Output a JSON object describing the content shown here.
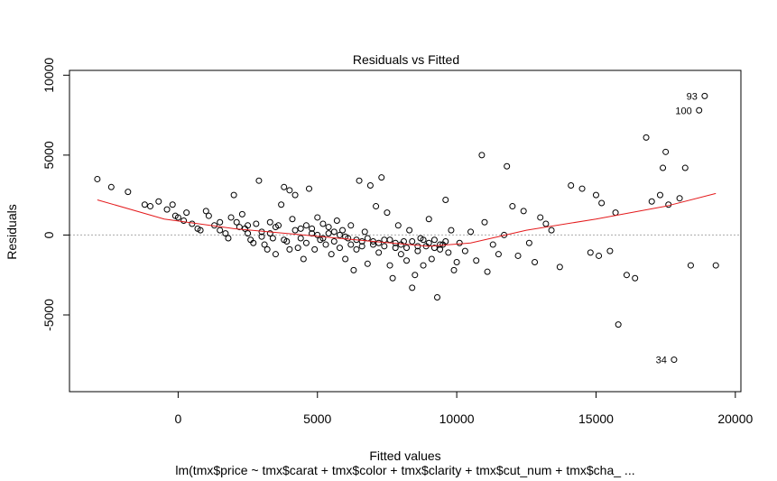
{
  "chart_data": {
    "type": "scatter",
    "title": "Residuals vs Fitted",
    "xlabel": "Fitted values",
    "ylabel": "Residuals",
    "subtitle": "lm(tmx$price ~ tmx$carat + tmx$color + tmx$clarity + tmx$cut_num + tmx$cha_ ...",
    "xlim": [
      -3900,
      20200
    ],
    "ylim": [
      -9800,
      10300
    ],
    "x_ticks": [
      0,
      5000,
      10000,
      15000,
      20000
    ],
    "y_ticks": [
      -5000,
      0,
      5000,
      10000
    ],
    "x_tick_labels": [
      "0",
      "5000",
      "10000",
      "15000",
      "20000"
    ],
    "y_tick_labels": [
      "-5000",
      "0",
      "5000",
      "10000"
    ],
    "zero_line": 0,
    "colors": {
      "points": "#000000",
      "smoother": "#e41a1c",
      "zero_line": "#aaaaaa"
    },
    "smoother": {
      "x": [
        -2900,
        -500,
        2000,
        4500,
        7000,
        9000,
        10500,
        12500,
        15000,
        17500,
        19300
      ],
      "y": [
        2200,
        1000,
        400,
        0,
        -400,
        -700,
        -500,
        300,
        1000,
        1800,
        2600
      ]
    },
    "labeled_points": [
      {
        "label": "93",
        "x": 18900,
        "y": 8700
      },
      {
        "label": "100",
        "x": 18700,
        "y": 7800
      },
      {
        "label": "34",
        "x": 17800,
        "y": -7800
      }
    ],
    "points": [
      [
        -2900,
        3500
      ],
      [
        -2400,
        3000
      ],
      [
        -1800,
        2700
      ],
      [
        -1200,
        1900
      ],
      [
        -1000,
        1800
      ],
      [
        -700,
        2100
      ],
      [
        -400,
        1600
      ],
      [
        -200,
        1900
      ],
      [
        -100,
        1200
      ],
      [
        0,
        1100
      ],
      [
        200,
        900
      ],
      [
        300,
        1400
      ],
      [
        500,
        700
      ],
      [
        700,
        400
      ],
      [
        800,
        300
      ],
      [
        1000,
        1500
      ],
      [
        1100,
        1200
      ],
      [
        1300,
        600
      ],
      [
        1500,
        300
      ],
      [
        1700,
        100
      ],
      [
        1800,
        -200
      ],
      [
        1900,
        1100
      ],
      [
        2000,
        2500
      ],
      [
        2100,
        800
      ],
      [
        2200,
        500
      ],
      [
        2300,
        1300
      ],
      [
        2400,
        400
      ],
      [
        2500,
        100
      ],
      [
        2600,
        -300
      ],
      [
        2700,
        -500
      ],
      [
        2800,
        700
      ],
      [
        2900,
        3400
      ],
      [
        3000,
        200
      ],
      [
        3100,
        -600
      ],
      [
        3200,
        -900
      ],
      [
        3300,
        800
      ],
      [
        3400,
        -200
      ],
      [
        3500,
        -1200
      ],
      [
        3600,
        600
      ],
      [
        3700,
        1900
      ],
      [
        3800,
        3000
      ],
      [
        3900,
        -400
      ],
      [
        4000,
        2800
      ],
      [
        4100,
        1000
      ],
      [
        4200,
        2500
      ],
      [
        4300,
        -800
      ],
      [
        4400,
        400
      ],
      [
        4500,
        -1500
      ],
      [
        4600,
        600
      ],
      [
        4700,
        2900
      ],
      [
        4800,
        100
      ],
      [
        4900,
        -900
      ],
      [
        5000,
        1100
      ],
      [
        5100,
        -300
      ],
      [
        5200,
        700
      ],
      [
        5300,
        -600
      ],
      [
        5400,
        500
      ],
      [
        5500,
        -1200
      ],
      [
        5600,
        200
      ],
      [
        5700,
        900
      ],
      [
        5800,
        -800
      ],
      [
        5900,
        300
      ],
      [
        6000,
        -1500
      ],
      [
        6100,
        -200
      ],
      [
        6200,
        600
      ],
      [
        6300,
        -2200
      ],
      [
        6400,
        -900
      ],
      [
        6500,
        3400
      ],
      [
        6600,
        -400
      ],
      [
        6700,
        200
      ],
      [
        6800,
        -1800
      ],
      [
        6900,
        3100
      ],
      [
        7000,
        -600
      ],
      [
        7100,
        1800
      ],
      [
        7200,
        -1100
      ],
      [
        7300,
        3600
      ],
      [
        7400,
        -300
      ],
      [
        7500,
        1400
      ],
      [
        7600,
        -1900
      ],
      [
        7700,
        -2700
      ],
      [
        7800,
        -800
      ],
      [
        7900,
        600
      ],
      [
        8000,
        -1200
      ],
      [
        8100,
        -400
      ],
      [
        8200,
        -1600
      ],
      [
        8300,
        300
      ],
      [
        8400,
        -3300
      ],
      [
        8500,
        -2500
      ],
      [
        8600,
        -1000
      ],
      [
        8700,
        -200
      ],
      [
        8800,
        -1900
      ],
      [
        8900,
        -700
      ],
      [
        9000,
        1000
      ],
      [
        9100,
        -1500
      ],
      [
        9200,
        -300
      ],
      [
        9300,
        -3900
      ],
      [
        9400,
        -900
      ],
      [
        9500,
        -600
      ],
      [
        9600,
        2200
      ],
      [
        9700,
        -1100
      ],
      [
        9800,
        300
      ],
      [
        9900,
        -2200
      ],
      [
        10000,
        -1700
      ],
      [
        10100,
        -500
      ],
      [
        10300,
        -1000
      ],
      [
        10500,
        200
      ],
      [
        10700,
        -1600
      ],
      [
        10900,
        5000
      ],
      [
        11000,
        800
      ],
      [
        11100,
        -2300
      ],
      [
        11300,
        -600
      ],
      [
        11500,
        -1200
      ],
      [
        11700,
        0
      ],
      [
        11800,
        4300
      ],
      [
        12000,
        1800
      ],
      [
        12200,
        -1300
      ],
      [
        12400,
        1500
      ],
      [
        12600,
        -500
      ],
      [
        12800,
        -1700
      ],
      [
        13000,
        1100
      ],
      [
        13200,
        700
      ],
      [
        13400,
        300
      ],
      [
        13700,
        -2000
      ],
      [
        14100,
        3100
      ],
      [
        14500,
        2900
      ],
      [
        14800,
        -1100
      ],
      [
        15000,
        2500
      ],
      [
        15100,
        -1300
      ],
      [
        15200,
        2000
      ],
      [
        15500,
        -1000
      ],
      [
        15700,
        1400
      ],
      [
        16100,
        -2500
      ],
      [
        16400,
        -2700
      ],
      [
        16800,
        6100
      ],
      [
        17000,
        2100
      ],
      [
        17300,
        2500
      ],
      [
        17400,
        4200
      ],
      [
        17500,
        5200
      ],
      [
        17600,
        1900
      ],
      [
        18000,
        2300
      ],
      [
        18200,
        4200
      ],
      [
        18400,
        -1900
      ],
      [
        19300,
        -1900
      ],
      [
        15800,
        -5600
      ],
      [
        18900,
        8700
      ],
      [
        18700,
        7800
      ],
      [
        17800,
        -7800
      ],
      [
        1500,
        800
      ],
      [
        2500,
        600
      ],
      [
        3000,
        -100
      ],
      [
        3300,
        100
      ],
      [
        3500,
        500
      ],
      [
        3800,
        -300
      ],
      [
        4000,
        -900
      ],
      [
        4200,
        300
      ],
      [
        4400,
        -200
      ],
      [
        4600,
        -500
      ],
      [
        4800,
        400
      ],
      [
        5000,
        0
      ],
      [
        5200,
        -200
      ],
      [
        5400,
        100
      ],
      [
        5600,
        -400
      ],
      [
        5800,
        0
      ],
      [
        6000,
        -100
      ],
      [
        6200,
        -600
      ],
      [
        6400,
        -300
      ],
      [
        6600,
        -700
      ],
      [
        6800,
        -200
      ],
      [
        7000,
        -400
      ],
      [
        7200,
        -500
      ],
      [
        7400,
        -700
      ],
      [
        7600,
        -300
      ],
      [
        7800,
        -500
      ],
      [
        8000,
        -600
      ],
      [
        8200,
        -800
      ],
      [
        8400,
        -400
      ],
      [
        8600,
        -700
      ],
      [
        8800,
        -300
      ],
      [
        9000,
        -500
      ],
      [
        9200,
        -800
      ],
      [
        9400,
        -600
      ],
      [
        9600,
        -400
      ]
    ]
  }
}
